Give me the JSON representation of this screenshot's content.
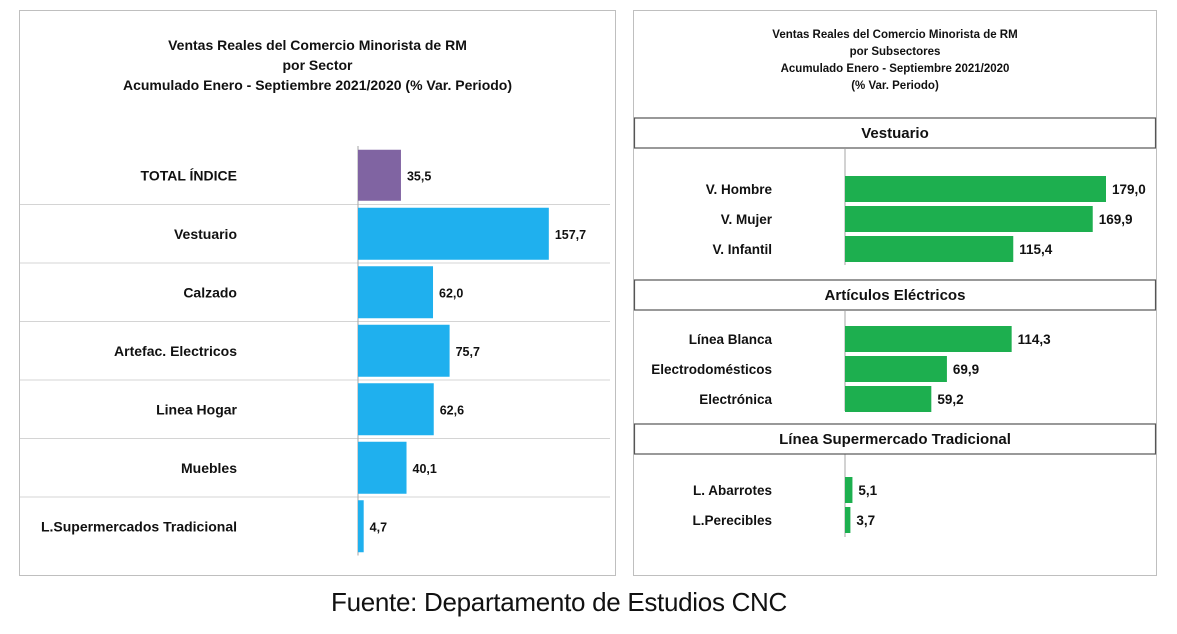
{
  "colors": {
    "total": "#8064A2",
    "sector": "#1FB0EE",
    "subsector": "#1DAF4F",
    "grid": "#d4d4d4",
    "axis": "#a6a6a6"
  },
  "left_chart_titles": [
    "Ventas Reales del Comercio Minorista de RM",
    "por Sector",
    "Acumulado Enero - Septiembre 2021/2020 (% Var. Periodo)"
  ],
  "right_chart_titles": [
    "Ventas Reales del Comercio Minorista de RM",
    "por Subsectores",
    "Acumulado Enero - Septiembre 2021/2020",
    "(% Var. Periodo)"
  ],
  "source": "Fuente: Departamento de Estudios CNC",
  "chart_data": [
    {
      "type": "bar",
      "orientation": "horizontal",
      "title": "Ventas Reales del Comercio Minorista de RM por Sector Acumulado Enero - Septiembre 2021/2020 (% Var. Periodo)",
      "categories": [
        "TOTAL ÍNDICE",
        "Vestuario",
        "Calzado",
        "Artefac. Electricos",
        "Linea Hogar",
        "Muebles",
        "L.Supermercados Tradicional"
      ],
      "values": [
        35.5,
        157.7,
        62.0,
        75.7,
        62.6,
        40.1,
        4.7
      ],
      "value_labels": [
        "35,5",
        "157,7",
        "62,0",
        "75,7",
        "62,6",
        "40,1",
        "4,7"
      ],
      "highlight": "TOTAL ÍNDICE",
      "grid": true,
      "xlim": [
        0,
        200
      ]
    },
    {
      "type": "bar",
      "orientation": "horizontal",
      "title": "Ventas Reales del Comercio Minorista de RM por Subsectores Acumulado Enero - Septiembre 2021/2020 (% Var. Periodo)",
      "groups": [
        {
          "name": "Vestuario",
          "categories": [
            "V. Hombre",
            "V. Mujer",
            "V. Infantil"
          ],
          "values": [
            179.0,
            169.9,
            115.4
          ],
          "value_labels": [
            "179,0",
            "169,9",
            "115,4"
          ]
        },
        {
          "name": "Artículos Eléctricos",
          "categories": [
            "Línea Blanca",
            "Electrodomésticos",
            "Electrónica"
          ],
          "values": [
            114.3,
            69.9,
            59.2
          ],
          "value_labels": [
            "114,3",
            "69,9",
            "59,2"
          ]
        },
        {
          "name": "Línea  Supermercado Tradicional",
          "categories": [
            "L. Abarrotes",
            "L.Perecibles"
          ],
          "values": [
            5.1,
            3.7
          ],
          "value_labels": [
            "5,1",
            "3,7"
          ]
        }
      ],
      "grid": false,
      "xlim": [
        0,
        200
      ]
    }
  ]
}
